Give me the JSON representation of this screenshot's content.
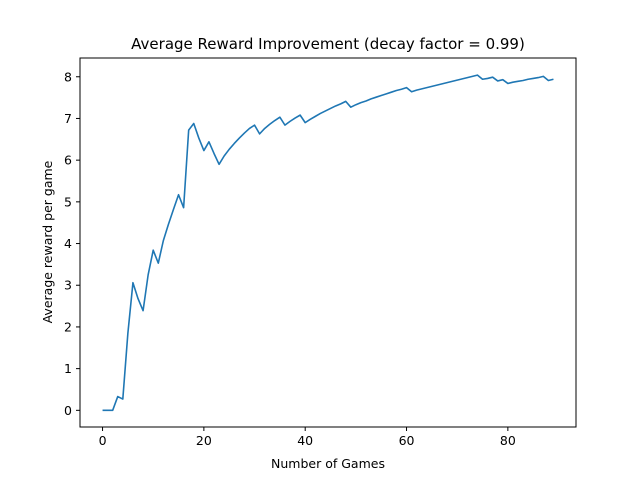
{
  "chart_data": {
    "type": "line",
    "title": "Average Reward Improvement (decay factor = 0.99)",
    "xlabel": "Number of Games",
    "ylabel": "Average reward per game",
    "xlim": [
      -4.45,
      93.45
    ],
    "ylim": [
      -0.4,
      8.45
    ],
    "xticks": [
      0,
      20,
      40,
      60,
      80
    ],
    "yticks": [
      0,
      1,
      2,
      3,
      4,
      5,
      6,
      7,
      8
    ],
    "grid": false,
    "series": [
      {
        "color": "#1f77b4",
        "x": [
          0,
          1,
          2,
          3,
          4,
          5,
          6,
          7,
          8,
          9,
          10,
          11,
          12,
          13,
          14,
          15,
          16,
          17,
          18,
          19,
          20,
          21,
          22,
          23,
          24,
          25,
          26,
          27,
          28,
          29,
          30,
          31,
          32,
          33,
          34,
          35,
          36,
          37,
          38,
          39,
          40,
          41,
          42,
          43,
          44,
          45,
          46,
          47,
          48,
          49,
          50,
          51,
          52,
          53,
          54,
          55,
          56,
          57,
          58,
          59,
          60,
          61,
          62,
          63,
          64,
          65,
          66,
          67,
          68,
          69,
          70,
          71,
          72,
          73,
          74,
          75,
          76,
          77,
          78,
          79,
          80,
          81,
          82,
          83,
          84,
          85,
          86,
          87,
          88,
          89
        ],
        "y": [
          0,
          0,
          0,
          0.33,
          0.27,
          1.85,
          3.06,
          2.68,
          2.39,
          3.25,
          3.84,
          3.53,
          4.07,
          4.46,
          4.82,
          5.17,
          4.86,
          6.72,
          6.88,
          6.53,
          6.23,
          6.44,
          6.16,
          5.9,
          6.1,
          6.26,
          6.4,
          6.53,
          6.65,
          6.76,
          6.84,
          6.63,
          6.76,
          6.86,
          6.95,
          7.03,
          6.84,
          6.93,
          7.01,
          7.08,
          6.9,
          6.98,
          7.05,
          7.12,
          7.18,
          7.24,
          7.3,
          7.35,
          7.41,
          7.27,
          7.33,
          7.38,
          7.42,
          7.47,
          7.51,
          7.55,
          7.59,
          7.63,
          7.67,
          7.7,
          7.74,
          7.64,
          7.68,
          7.71,
          7.74,
          7.77,
          7.8,
          7.83,
          7.86,
          7.89,
          7.92,
          7.95,
          7.98,
          8.01,
          8.04,
          7.94,
          7.96,
          7.99,
          7.9,
          7.93,
          7.84,
          7.87,
          7.89,
          7.91,
          7.94,
          7.96,
          7.98,
          8.01,
          7.91,
          7.94
        ]
      }
    ]
  }
}
